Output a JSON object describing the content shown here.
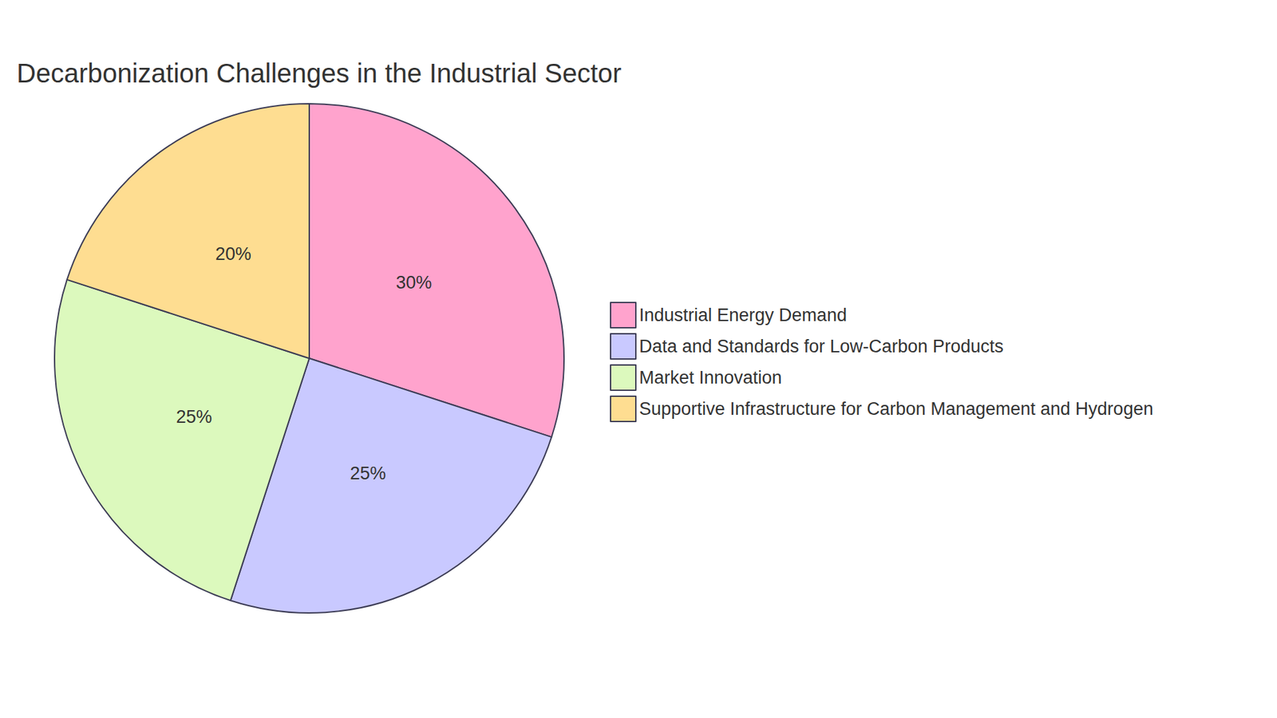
{
  "chart_data": {
    "type": "pie",
    "title": "Decarbonization Challenges in the Industrial Sector",
    "categories": [
      "Industrial Energy Demand",
      "Data and Standards for Low-Carbon Products",
      "Market Innovation",
      "Supportive Infrastructure for Carbon Management and Hydrogen"
    ],
    "values": [
      30,
      25,
      25,
      20
    ],
    "value_labels": [
      "30%",
      "25%",
      "25%",
      "20%"
    ],
    "colors": [
      "#ffa3cd",
      "#c9c9ff",
      "#dcf9bd",
      "#fedd91"
    ],
    "data_labels": true,
    "legend": "right"
  }
}
